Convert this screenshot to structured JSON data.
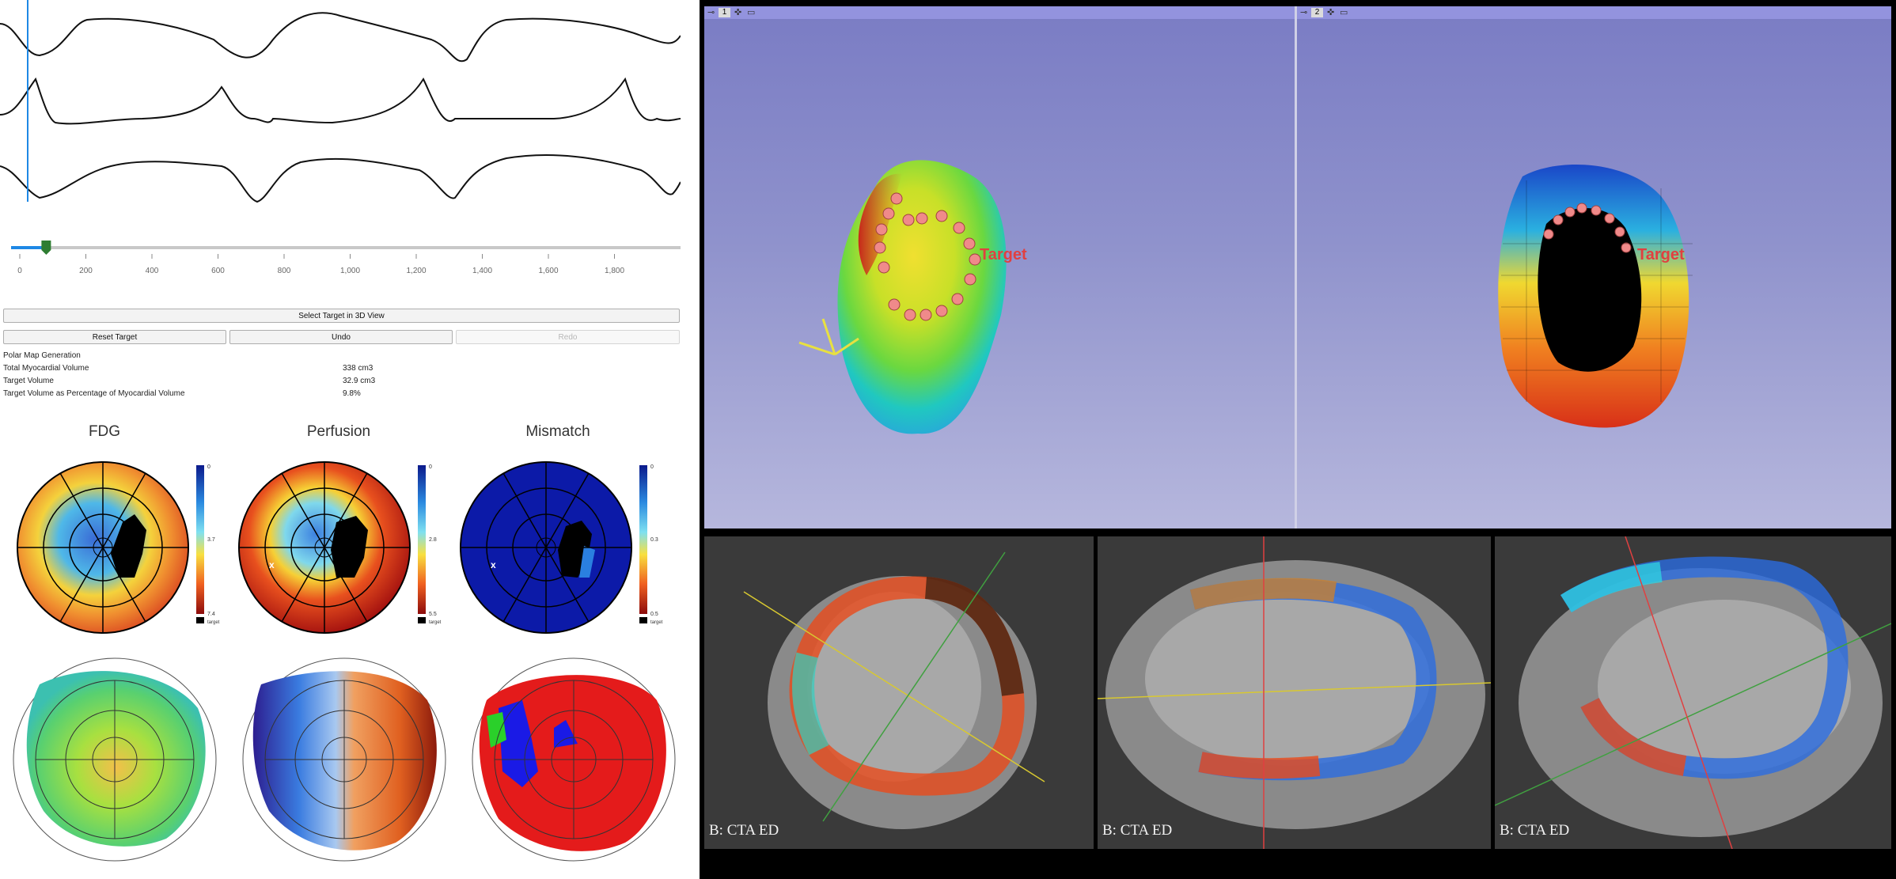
{
  "timeline": {
    "ticks": [
      "0",
      "200",
      "400",
      "600",
      "800",
      "1,000",
      "1,200",
      "1,400",
      "1,600",
      "1,800"
    ],
    "slider_value": 80,
    "max": 2000
  },
  "controls": {
    "select_target": "Select Target in 3D View",
    "reset_target": "Reset Target",
    "undo": "Undo",
    "redo": "Redo"
  },
  "info": {
    "section": "Polar Map Generation",
    "rows": [
      {
        "label": "Total Myocardial Volume",
        "value": "338 cm3"
      },
      {
        "label": "Target Volume",
        "value": "32.9 cm3"
      },
      {
        "label": "Target Volume as Percentage of Myocardial Volume",
        "value": "9.8%"
      }
    ]
  },
  "polar_maps": [
    {
      "title": "FDG",
      "scale": [
        "0",
        "3.7",
        "7.4"
      ],
      "legend": "target"
    },
    {
      "title": "Perfusion",
      "scale": [
        "0",
        "2.8",
        "5.5"
      ],
      "legend": "target"
    },
    {
      "title": "Mismatch",
      "scale": [
        "0",
        "0.3",
        "0.5"
      ],
      "legend": "target"
    }
  ],
  "views3d": [
    {
      "number": "1",
      "label": "Target"
    },
    {
      "number": "2",
      "label": "Target"
    }
  ],
  "ct_views": [
    {
      "label": "B: CTA ED"
    },
    {
      "label": "B: CTA ED"
    },
    {
      "label": "B: CTA ED"
    }
  ],
  "colors": {
    "accent": "#1e88e5",
    "slider_handle": "#2e7d32",
    "view_bg_top": "#7a7cc4",
    "target_text": "#e04040"
  },
  "icons": [
    "pin-icon",
    "crosshair-icon",
    "maximize-icon"
  ]
}
